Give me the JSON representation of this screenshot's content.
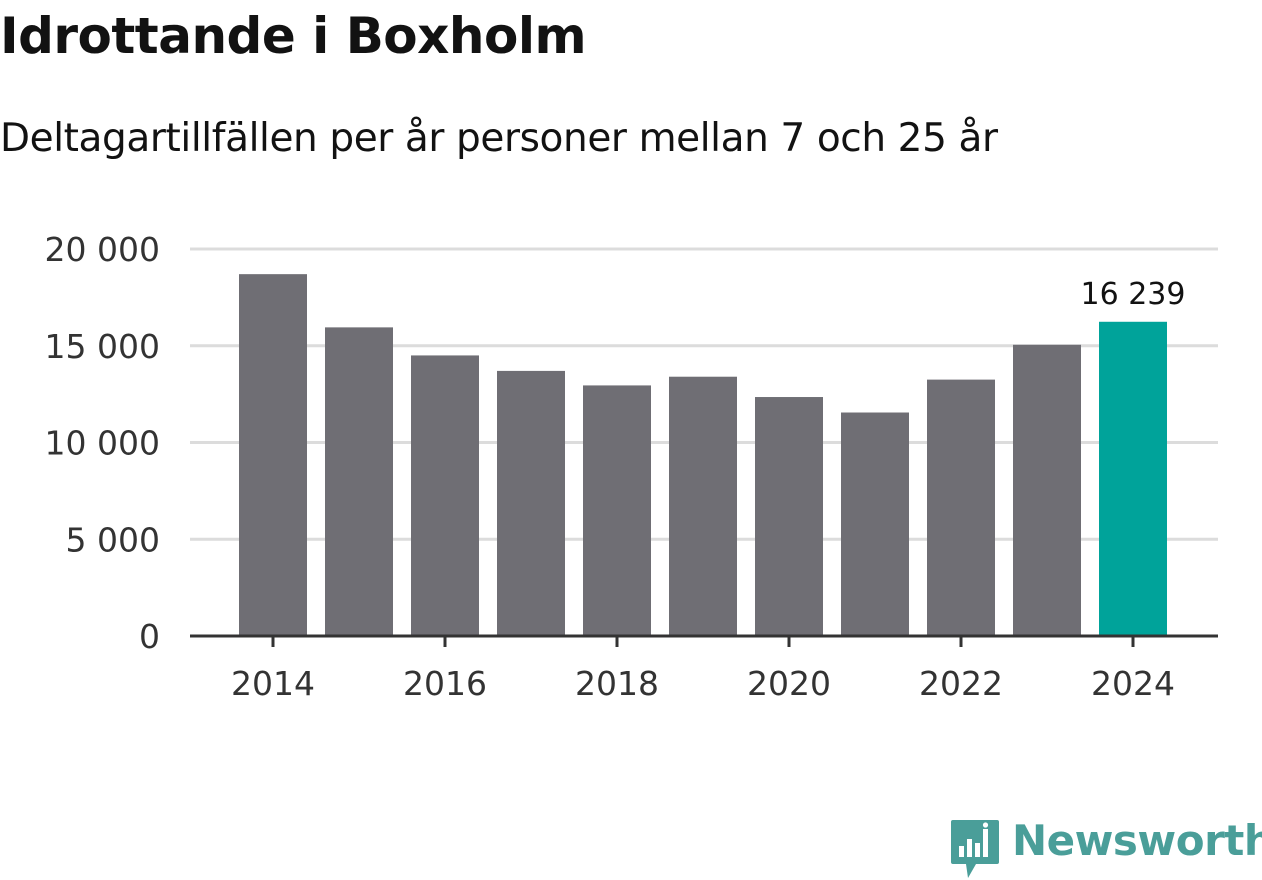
{
  "header": {
    "title": "Idrottande i Boxholm",
    "subtitle": "Deltagartillfällen per år personer mellan 7 och 25 år"
  },
  "colors": {
    "bar": "#6f6e74",
    "highlight": "#00a39a",
    "grid": "#dcdcdc",
    "axis": "#333333",
    "brand": "#4a9e99"
  },
  "chart_data": {
    "type": "bar",
    "title": "Idrottande i Boxholm",
    "subtitle": "Deltagartillfällen per år personer mellan 7 och 25 år",
    "xlabel": "",
    "ylabel": "",
    "categories": [
      "2014",
      "2015",
      "2016",
      "2017",
      "2018",
      "2019",
      "2020",
      "2021",
      "2022",
      "2023",
      "2024"
    ],
    "values": [
      18700,
      15950,
      14500,
      13700,
      12950,
      13400,
      12350,
      11550,
      13250,
      15050,
      16239
    ],
    "highlight_index": 10,
    "data_labels": [
      {
        "index": 10,
        "text": "16 239"
      }
    ],
    "x_tick_labels": [
      "2014",
      "2016",
      "2018",
      "2020",
      "2022",
      "2024"
    ],
    "y_ticks": [
      0,
      5000,
      10000,
      15000,
      20000
    ],
    "y_tick_labels": [
      "0",
      "5 000",
      "10 000",
      "15 000",
      "20 000"
    ],
    "ylim": [
      0,
      20000
    ],
    "grid": true,
    "legend": "none"
  },
  "branding": {
    "logo_icon": "newsworthy-chart-icon",
    "name": "Newsworthy"
  }
}
